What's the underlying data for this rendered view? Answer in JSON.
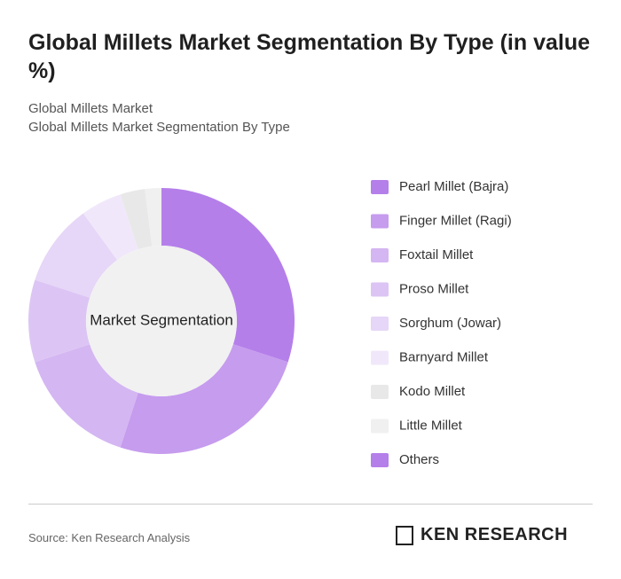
{
  "chart_data": {
    "type": "donut",
    "title": "Global Millets Market Segmentation By Type (in value %)",
    "subtitle": "Global Millets Market",
    "subtitle2": "Global Millets Market Segmentation By Type",
    "center_label": "Market Segmentation",
    "categories": [
      "Pearl Millet (Bajra)",
      "Finger Millet (Ragi)",
      "Foxtail Millet",
      "Proso Millet",
      "Sorghum (Jowar)",
      "Barnyard Millet",
      "Kodo Millet",
      "Little Millet",
      "Others"
    ],
    "values": [
      30,
      25,
      15,
      10,
      10,
      5,
      3,
      2,
      0
    ],
    "colors": [
      "#b57fea",
      "#c69cee",
      "#d4b6f2",
      "#dcc5f4",
      "#e6d6f7",
      "#f0e8fa",
      "#e8e8e8",
      "#f0f0f0",
      "#b57fea"
    ],
    "source": "Source: Ken Research Analysis",
    "brand": "KEN RESEARCH"
  }
}
